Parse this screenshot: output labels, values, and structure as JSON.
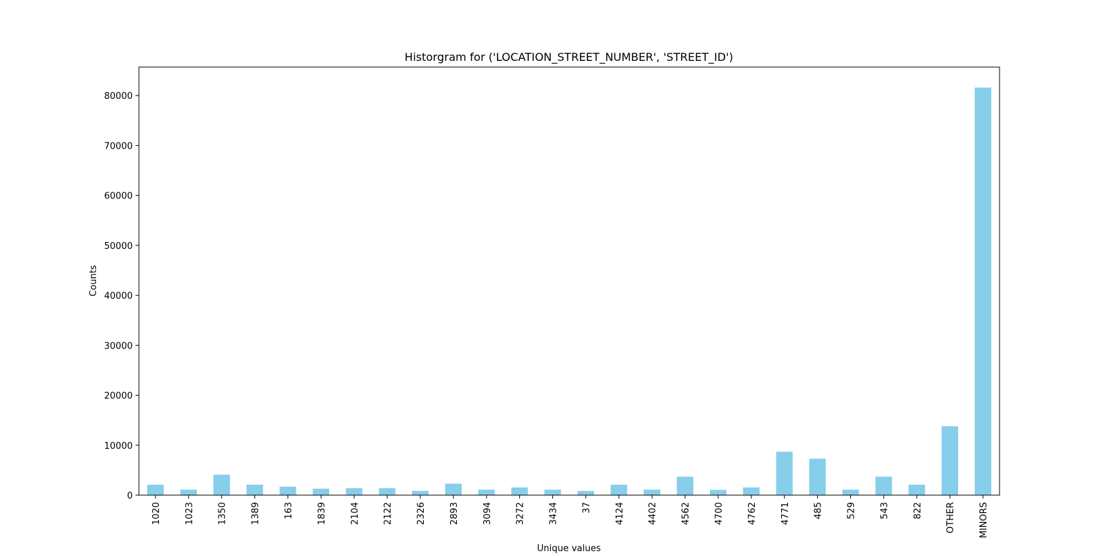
{
  "chart_data": {
    "type": "bar",
    "title": "Historgram for ('LOCATION_STREET_NUMBER', 'STREET_ID')",
    "xlabel": "Unique values",
    "ylabel": "Counts",
    "ylim": [
      0,
      85700
    ],
    "yticks": [
      0,
      10000,
      20000,
      30000,
      40000,
      50000,
      60000,
      70000,
      80000
    ],
    "grid": false,
    "legend": "none",
    "bar_color": "#87ceeb",
    "categories": [
      "1020",
      "1023",
      "1350",
      "1389",
      "163",
      "1839",
      "2104",
      "2122",
      "2326",
      "2893",
      "3094",
      "3272",
      "3434",
      "37",
      "4124",
      "4402",
      "4562",
      "4700",
      "4762",
      "4771",
      "485",
      "529",
      "543",
      "822",
      "OTHER",
      "MINORS"
    ],
    "values": [
      2100,
      1100,
      4100,
      2100,
      1700,
      1300,
      1400,
      1400,
      850,
      2300,
      1100,
      1550,
      1100,
      850,
      2100,
      1100,
      3700,
      1050,
      1550,
      8700,
      7300,
      1100,
      3700,
      2100,
      13800,
      81600
    ]
  }
}
